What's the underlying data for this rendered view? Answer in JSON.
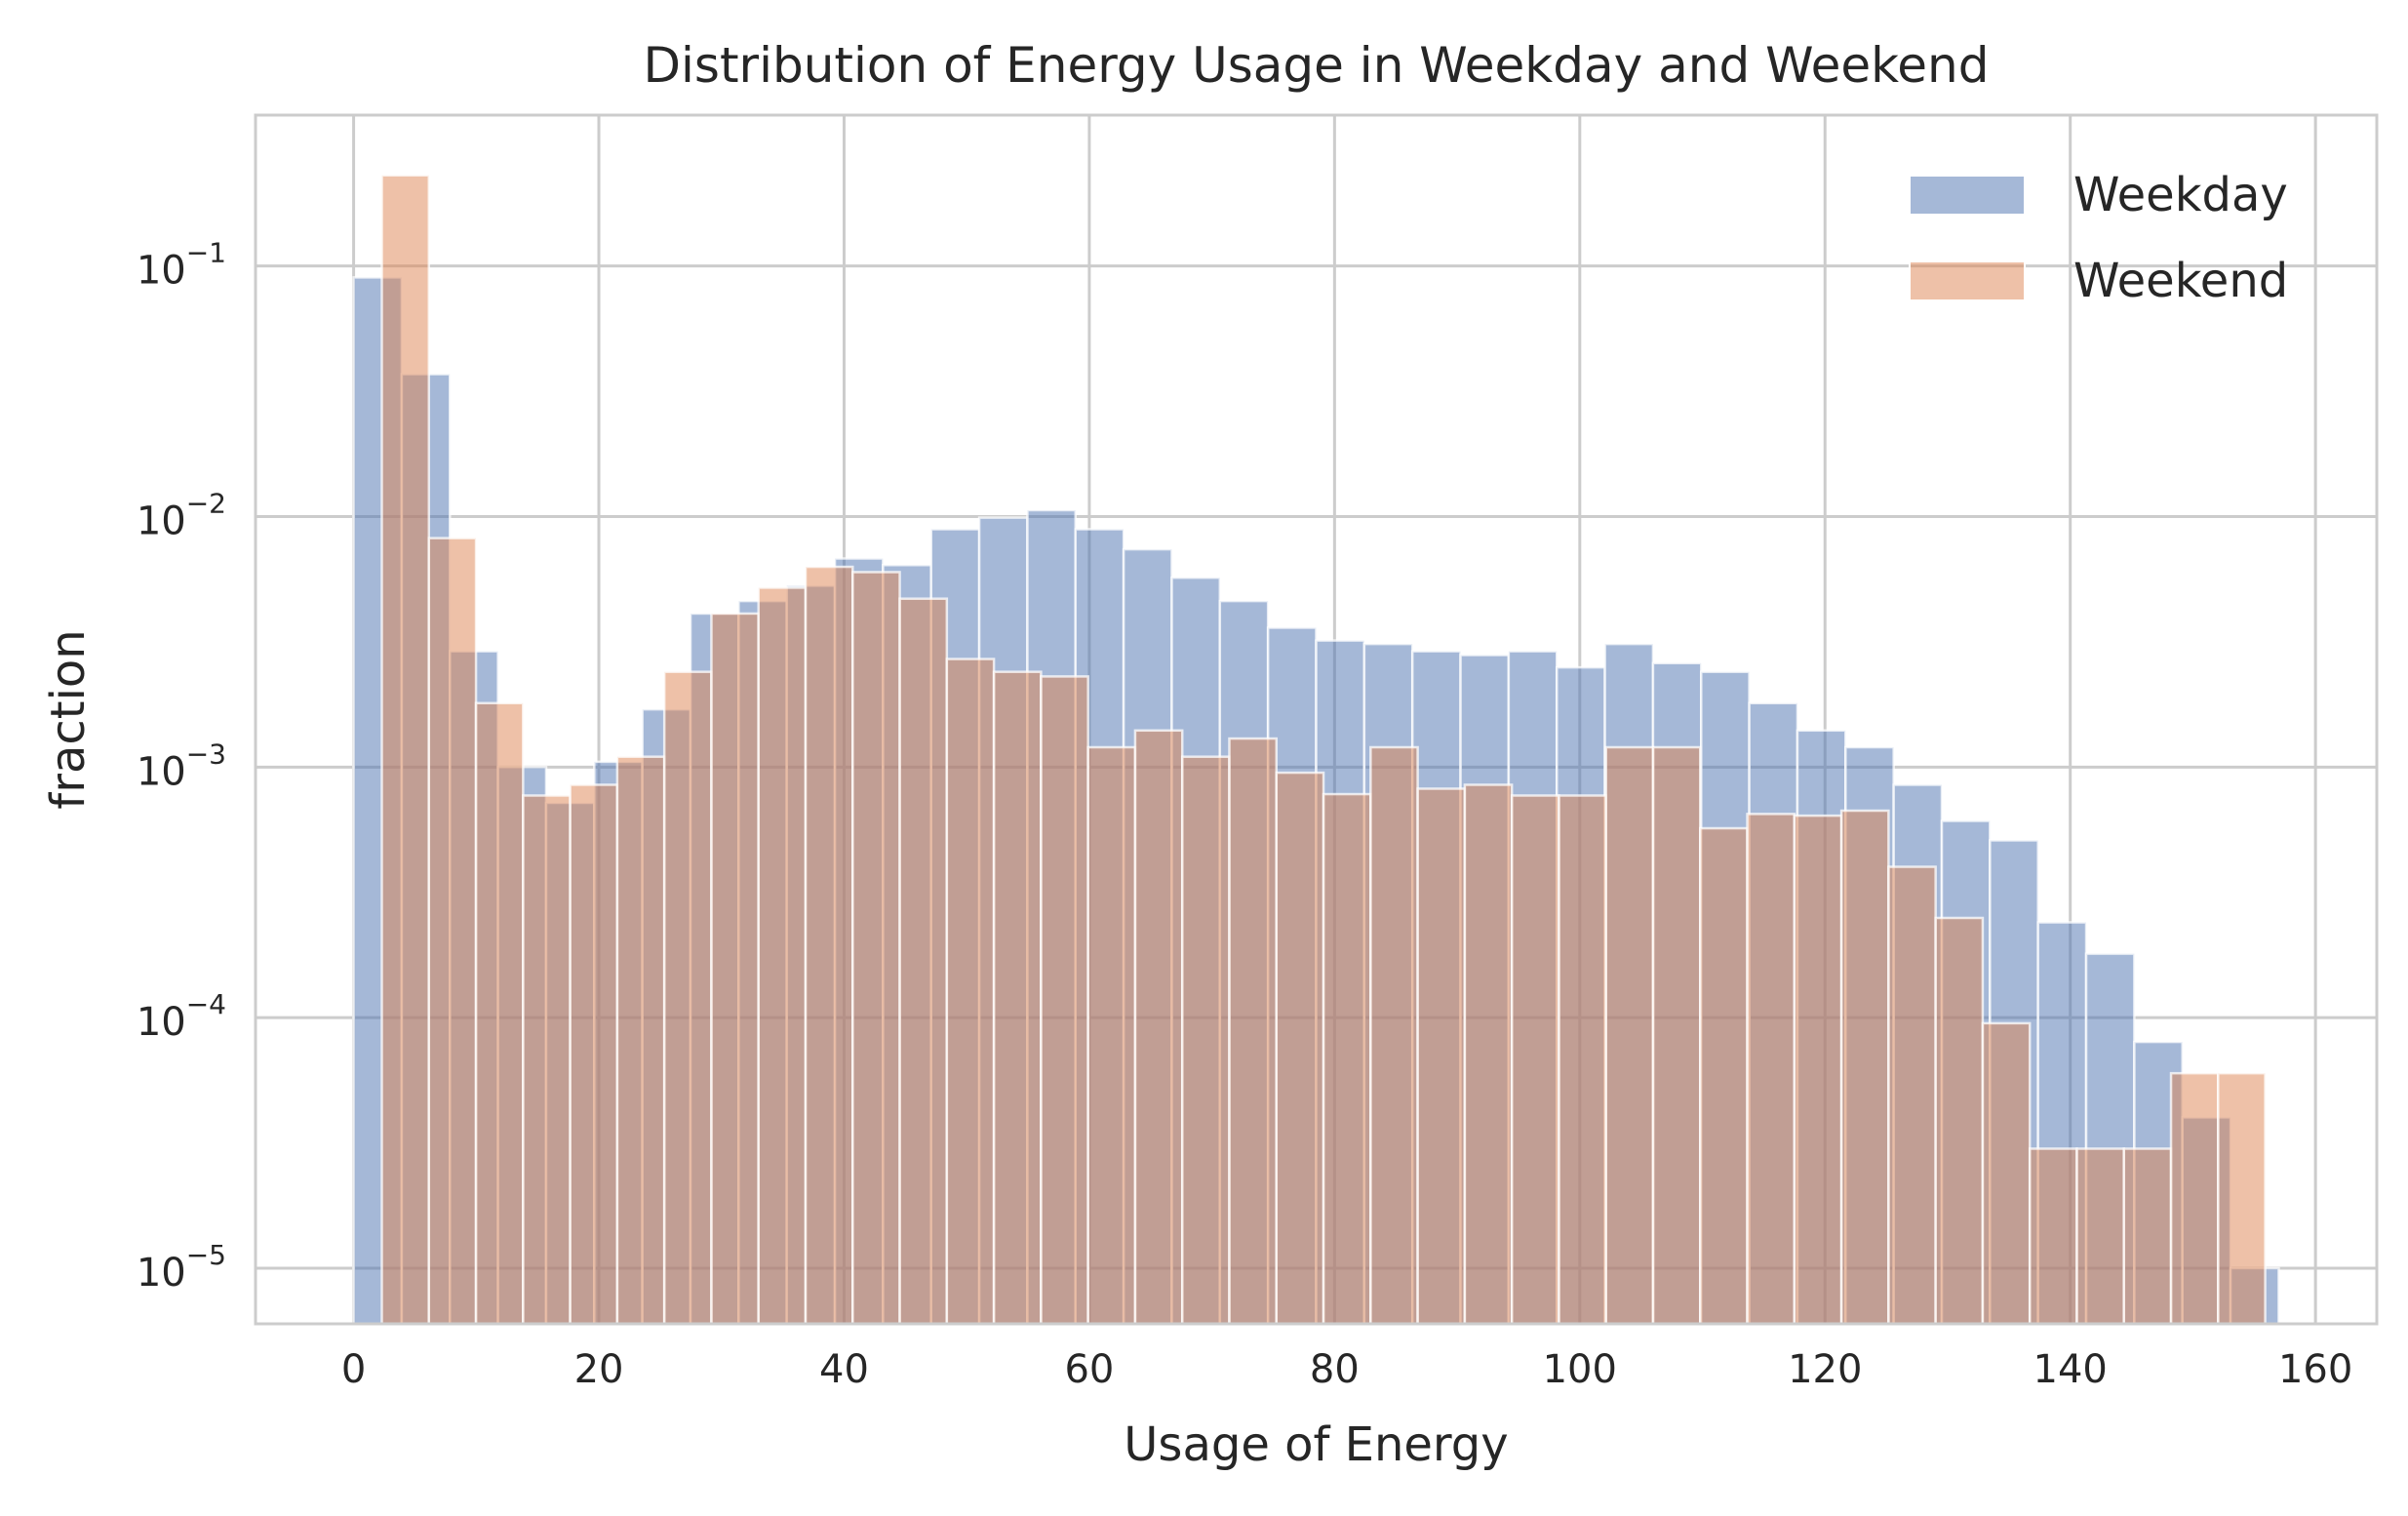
{
  "chart_data": {
    "type": "bar",
    "title": "Distribution of Energy Usage in Weekday and Weekend",
    "xlabel": "Usage of Energy",
    "ylabel": "fraction",
    "xlim": [
      -8,
      165
    ],
    "ylim": [
      6e-06,
      0.4
    ],
    "yscale": "log",
    "grid": true,
    "legend_position": "top-right",
    "xticks": [
      0,
      20,
      40,
      60,
      80,
      100,
      120,
      140,
      160
    ],
    "yticks": [
      {
        "value": 1e-05,
        "base": "10",
        "exp": "−5"
      },
      {
        "value": 0.0001,
        "base": "10",
        "exp": "−4"
      },
      {
        "value": 0.001,
        "base": "10",
        "exp": "−3"
      },
      {
        "value": 0.01,
        "base": "10",
        "exp": "−2"
      },
      {
        "value": 0.1,
        "base": "10",
        "exp": "−1"
      }
    ],
    "series": [
      {
        "name": "Weekday",
        "color": "#4c72b0",
        "bin_start": 0,
        "bin_width": 3.925,
        "values": [
          0.09,
          0.037,
          0.0029,
          0.001,
          0.00072,
          0.00105,
          0.0017,
          0.0041,
          0.0046,
          0.0053,
          0.0068,
          0.0064,
          0.0089,
          0.0099,
          0.0106,
          0.0089,
          0.0074,
          0.0057,
          0.0046,
          0.0036,
          0.0032,
          0.0031,
          0.0029,
          0.0028,
          0.0029,
          0.0025,
          0.0031,
          0.0026,
          0.0024,
          0.0018,
          0.0014,
          0.0012,
          0.00085,
          0.00061,
          0.00051,
          0.00024,
          0.00018,
          8e-05,
          4e-05,
          1e-05
        ]
      },
      {
        "name": "Weekend",
        "color": "#dd8452",
        "bin_start": 2.3,
        "bin_width": 3.84,
        "values": [
          0.23,
          0.0082,
          0.0018,
          0.00077,
          0.00085,
          0.0011,
          0.0024,
          0.0041,
          0.0052,
          0.0063,
          0.006,
          0.0047,
          0.0027,
          0.0024,
          0.0023,
          0.0012,
          0.0014,
          0.0011,
          0.0013,
          0.00095,
          0.00078,
          0.0012,
          0.00082,
          0.00085,
          0.00077,
          0.00077,
          0.0012,
          0.0012,
          0.00057,
          0.00065,
          0.00064,
          0.00067,
          0.0004,
          0.00025,
          9.5e-05,
          3e-05,
          3e-05,
          3e-05,
          6e-05,
          6e-05
        ]
      }
    ]
  }
}
